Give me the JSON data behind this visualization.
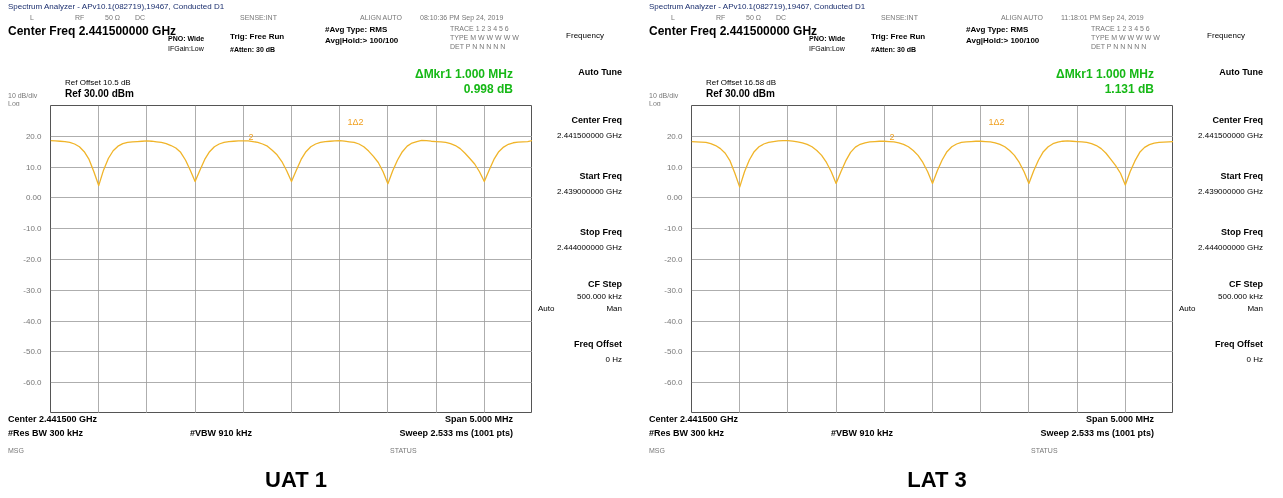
{
  "chart_data": [
    {
      "type": "line",
      "title": "UAT 1",
      "annotations": [
        "Spectrum Analyzer - APv10.1(082719),19467, Conducted D1",
        "L",
        "RF",
        "50 Ω",
        "DC",
        "SENSE:INT",
        "ALIGN AUTO",
        "08:10:36 PM Sep 24, 2019",
        "Center Freq 2.441500000 GHz",
        "PNO: Wide",
        "IFGain:Low",
        "Trig: Free Run",
        "#Atten: 30 dB",
        "#Avg Type: RMS",
        "Avg|Hold:> 100/100",
        "TRACE 1 2 3 4 5 6",
        "TYPE M W W W W W",
        "DET P N N N N N",
        "Ref Offset 10.5 dB",
        "Ref 30.00 dBm",
        "10 dB/div",
        "Log",
        "ΔMkr1 1.000 MHz",
        "0.998 dB",
        "Center 2.441500 GHz",
        "#Res BW 300 kHz",
        "#VBW 910 kHz",
        "Span 5.000 MHz",
        "Sweep  2.533 ms (1001 pts)",
        "MSG",
        "STATUS",
        "Frequency",
        "Auto Tune",
        "Center Freq",
        "2.441500000 GHz",
        "Start Freq",
        "2.439000000 GHz",
        "Stop Freq",
        "2.444000000 GHz",
        "CF Step",
        "500.000 kHz",
        "Auto",
        "Man",
        "Freq Offset",
        "0 Hz",
        "1Δ2",
        "2"
      ],
      "categories": [
        null,
        null,
        null,
        null,
        null,
        null,
        null,
        null,
        null,
        null,
        null,
        null,
        null,
        null,
        null,
        null,
        null,
        null,
        null,
        null,
        null,
        null,
        null,
        null,
        null,
        null,
        null,
        null,
        null,
        null,
        null,
        null,
        null,
        null,
        null,
        null,
        null,
        null,
        null,
        null,
        null,
        null,
        null,
        null,
        null,
        null,
        null,
        null,
        null,
        null,
        null,
        null,
        null,
        null,
        null,
        null,
        null,
        null,
        null,
        null,
        null,
        null,
        null,
        null,
        null,
        null,
        null,
        null,
        null,
        null,
        null,
        null,
        null,
        null,
        null,
        null,
        null,
        null,
        null,
        null,
        null,
        null,
        null,
        null,
        null,
        null,
        null,
        null,
        null,
        null,
        null,
        null,
        null,
        null,
        null,
        null,
        null,
        null,
        null,
        null,
        null
      ],
      "series": [
        {
          "color": "#f0b429",
          "values": [
            18.6,
            18.5,
            18.4,
            18.3,
            18.0,
            17.5,
            16.6,
            15.0,
            12.5,
            8.5,
            4.0,
            9.0,
            12.8,
            15.3,
            16.8,
            17.6,
            18.0,
            18.2,
            18.3,
            18.4,
            18.5,
            18.4,
            18.2,
            18.0,
            17.6,
            17.0,
            16.2,
            14.8,
            12.3,
            9.0,
            5.3,
            9.0,
            12.5,
            15.0,
            16.6,
            17.5,
            18.0,
            18.3,
            18.4,
            18.5,
            18.5,
            18.5,
            18.3,
            18.0,
            17.5,
            16.8,
            15.5,
            14.0,
            11.8,
            8.8,
            5.3,
            9.0,
            12.5,
            15.0,
            16.6,
            17.5,
            18.0,
            18.3,
            18.4,
            18.5,
            18.6,
            18.4,
            18.2,
            18.0,
            17.5,
            16.6,
            15.2,
            13.5,
            11.5,
            8.5,
            4.6,
            8.8,
            12.3,
            15.0,
            16.8,
            17.8,
            18.3,
            18.7,
            18.6,
            18.4,
            18.3,
            18.2,
            18.0,
            17.6,
            17.0,
            16.0,
            14.5,
            12.8,
            11.0,
            8.5,
            5.3,
            9.0,
            12.5,
            15.0,
            16.5,
            17.4,
            17.9,
            18.1,
            18.2,
            18.3,
            18.6
          ]
        }
      ],
      "ylim": [
        -70,
        30
      ],
      "yticks": [
        {
          "value": 30,
          "label": null
        },
        {
          "value": 20,
          "label": "20.0"
        },
        {
          "value": 10,
          "label": "10.0"
        },
        {
          "value": 0,
          "label": "0.00"
        },
        {
          "value": -10,
          "label": "-10.0"
        },
        {
          "value": -20,
          "label": "-20.0"
        },
        {
          "value": -30,
          "label": "-30.0"
        },
        {
          "value": -40,
          "label": "-40.0"
        },
        {
          "value": -50,
          "label": "-50.0"
        },
        {
          "value": -60,
          "label": "-60.0"
        },
        {
          "value": -70,
          "label": null
        }
      ],
      "tick_labels": "y",
      "grid": true
    },
    {
      "type": "line",
      "title": "LAT 3",
      "annotations": [
        "Spectrum Analyzer - APv10.1(082719),19467, Conducted D1",
        "L",
        "RF",
        "50 Ω",
        "DC",
        "SENSE:INT",
        "ALIGN AUTO",
        "11:18:01 PM Sep 24, 2019",
        "Center Freq 2.441500000 GHz",
        "PNO: Wide",
        "IFGain:Low",
        "Trig: Free Run",
        "#Atten: 30 dB",
        "#Avg Type: RMS",
        "Avg|Hold:> 100/100",
        "TRACE 1 2 3 4 5 6",
        "TYPE M W W W W W",
        "DET P N N N N N",
        "Ref Offset 16.58 dB",
        "Ref 30.00 dBm",
        "10 dB/div",
        "Log",
        "ΔMkr1 1.000 MHz",
        "1.131 dB",
        "Center 2.441500 GHz",
        "#Res BW 300 kHz",
        "#VBW 910 kHz",
        "Span 5.000 MHz",
        "Sweep  2.533 ms (1001 pts)",
        "MSG",
        "STATUS",
        "Frequency",
        "Auto Tune",
        "Center Freq",
        "2.441500000 GHz",
        "Start Freq",
        "2.439000000 GHz",
        "Stop Freq",
        "2.444000000 GHz",
        "CF Step",
        "500.000 kHz",
        "Auto",
        "Man",
        "Freq Offset",
        "0 Hz",
        "1Δ2",
        "2"
      ],
      "categories": [
        null,
        null,
        null,
        null,
        null,
        null,
        null,
        null,
        null,
        null,
        null,
        null,
        null,
        null,
        null,
        null,
        null,
        null,
        null,
        null,
        null,
        null,
        null,
        null,
        null,
        null,
        null,
        null,
        null,
        null,
        null,
        null,
        null,
        null,
        null,
        null,
        null,
        null,
        null,
        null,
        null,
        null,
        null,
        null,
        null,
        null,
        null,
        null,
        null,
        null,
        null,
        null,
        null,
        null,
        null,
        null,
        null,
        null,
        null,
        null,
        null,
        null,
        null,
        null,
        null,
        null,
        null,
        null,
        null,
        null,
        null,
        null,
        null,
        null,
        null,
        null,
        null,
        null,
        null,
        null,
        null,
        null,
        null,
        null,
        null,
        null,
        null,
        null,
        null,
        null,
        null,
        null,
        null,
        null,
        null,
        null,
        null,
        null,
        null,
        null,
        null
      ],
      "series": [
        {
          "color": "#f0b429",
          "values": [
            18.3,
            18.2,
            18.1,
            18.0,
            17.6,
            17.0,
            16.0,
            14.5,
            12.0,
            8.0,
            3.5,
            8.5,
            12.3,
            15.0,
            16.6,
            17.5,
            18.0,
            18.3,
            18.5,
            18.6,
            18.6,
            18.4,
            18.2,
            17.9,
            17.4,
            16.6,
            15.4,
            13.8,
            11.5,
            8.5,
            4.7,
            8.5,
            12.0,
            14.8,
            16.5,
            17.4,
            17.9,
            18.2,
            18.3,
            18.4,
            18.4,
            18.3,
            18.2,
            17.9,
            17.4,
            16.6,
            15.4,
            13.8,
            11.5,
            8.5,
            4.7,
            8.8,
            12.3,
            15.0,
            16.6,
            17.5,
            18.0,
            18.2,
            18.3,
            18.4,
            18.4,
            18.3,
            18.2,
            17.9,
            17.4,
            16.6,
            15.4,
            13.8,
            11.5,
            8.5,
            4.7,
            8.8,
            12.3,
            15.0,
            16.6,
            17.6,
            18.1,
            18.4,
            18.5,
            18.4,
            18.3,
            18.2,
            18.0,
            17.6,
            17.0,
            16.0,
            14.5,
            12.5,
            10.5,
            8.0,
            4.2,
            8.5,
            12.0,
            14.8,
            16.4,
            17.3,
            17.8,
            18.0,
            18.1,
            18.2,
            18.3
          ]
        }
      ],
      "ylim": [
        -70,
        30
      ],
      "yticks": [
        {
          "value": 30,
          "label": null
        },
        {
          "value": 20,
          "label": "20.0"
        },
        {
          "value": 10,
          "label": "10.0"
        },
        {
          "value": 0,
          "label": "0.00"
        },
        {
          "value": -10,
          "label": "-10.0"
        },
        {
          "value": -20,
          "label": "-20.0"
        },
        {
          "value": -30,
          "label": "-30.0"
        },
        {
          "value": -40,
          "label": "-40.0"
        },
        {
          "value": -50,
          "label": "-50.0"
        },
        {
          "value": -60,
          "label": "-60.0"
        },
        {
          "value": -70,
          "label": null
        }
      ],
      "tick_labels": "y",
      "grid": true
    }
  ]
}
